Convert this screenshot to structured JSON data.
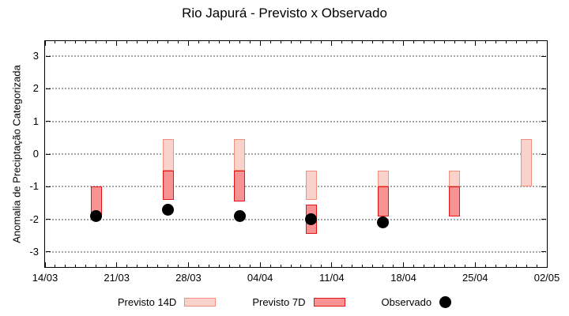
{
  "chart_data": {
    "type": "bar",
    "subtype": "floating-range-bars-with-scatter",
    "title": "Rio Japurá - Previsto x Observado",
    "ylabel": "Anomalia de Preciptação Categorizada",
    "ylim": [
      -3.46,
      3.46
    ],
    "yticks": [
      3,
      2,
      1,
      0,
      -1,
      -2,
      -3
    ],
    "grid": "horizontal dotted gray lines at integer y values",
    "x_axis": {
      "tick_labels": [
        "14/03",
        "21/03",
        "28/03",
        "04/04",
        "11/04",
        "18/04",
        "25/04",
        "02/05"
      ],
      "tick_days": [
        0,
        7,
        14,
        21,
        28,
        35,
        42,
        49
      ],
      "total_days": 49,
      "minor_tick_every_days": 1
    },
    "series": [
      {
        "name": "Previsto 14D",
        "type": "range_bar",
        "fill": "#f9d2cb",
        "border": "#f0907d",
        "bars": [
          {
            "day": 12,
            "date": "26/03",
            "high": 0.45,
            "low": -0.5
          },
          {
            "day": 19,
            "date": "02/04",
            "high": 0.45,
            "low": -0.5
          },
          {
            "day": 26,
            "date": "09/04",
            "high": -0.5,
            "low": -1.4
          },
          {
            "day": 33,
            "date": "16/04",
            "high": -0.5,
            "low": -1.0
          },
          {
            "day": 40,
            "date": "23/04",
            "high": -0.5,
            "low": -1.0
          },
          {
            "day": 47,
            "date": "30/04",
            "high": 0.45,
            "low": -1.0
          }
        ]
      },
      {
        "name": "Previsto 7D",
        "type": "range_bar",
        "fill": "#f99292",
        "border": "#e51515",
        "bars": [
          {
            "day": 5,
            "date": "19/03",
            "high": -1.0,
            "low": -1.9
          },
          {
            "day": 12,
            "date": "26/03",
            "high": -0.5,
            "low": -1.4
          },
          {
            "day": 19,
            "date": "02/04",
            "high": -0.5,
            "low": -1.45
          },
          {
            "day": 26,
            "date": "09/04",
            "high": -1.55,
            "low": -2.45
          },
          {
            "day": 33,
            "date": "16/04",
            "high": -1.0,
            "low": -1.9
          },
          {
            "day": 40,
            "date": "23/04",
            "high": -1.0,
            "low": -1.9
          }
        ]
      },
      {
        "name": "Observado",
        "type": "scatter",
        "color": "#000000",
        "points": [
          {
            "day": 5,
            "date": "19/03",
            "value": -1.9
          },
          {
            "day": 12,
            "date": "26/03",
            "value": -1.7
          },
          {
            "day": 19,
            "date": "02/04",
            "value": -1.9
          },
          {
            "day": 26,
            "date": "09/04",
            "value": -2.0
          },
          {
            "day": 33,
            "date": "16/04",
            "value": -2.1
          }
        ]
      }
    ],
    "legend": [
      {
        "label": "Previsto 14D",
        "swatch": "rect",
        "fill": "#f9d2cb",
        "border": "#f0907d"
      },
      {
        "label": "Previsto 7D",
        "swatch": "rect",
        "fill": "#f99292",
        "border": "#e51515"
      },
      {
        "label": "Observado",
        "swatch": "dot",
        "fill": "#000000"
      }
    ],
    "legend_position": "bottom",
    "colors": {
      "axis": "#000000",
      "gridline": "#a8a8a8",
      "background": "#ffffff"
    }
  }
}
